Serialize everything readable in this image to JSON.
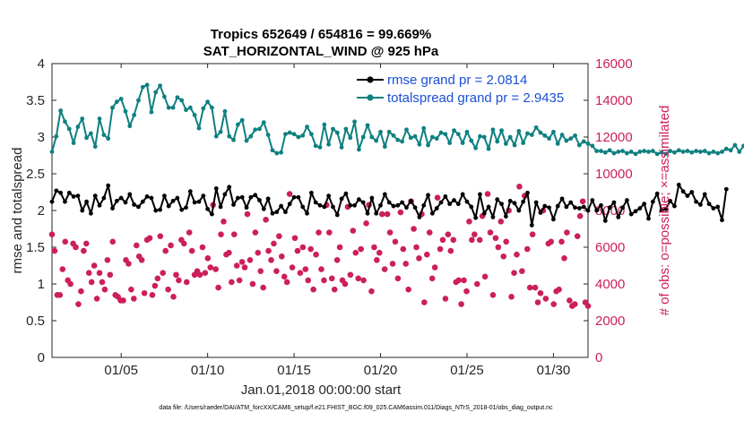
{
  "chart_data": {
    "type": "line",
    "title": "Tropics 652649 / 654816 = 99.669%",
    "subtitle": "SAT_HORIZONTAL_WIND @ 925 hPa",
    "xlabel": "Jan.01,2018 00:00:00 start",
    "ylabel": "rmse and totalspread",
    "ylabel_right": "# of obs: o=possible; ×=assimilated",
    "footnote": "data file: /Users/raeder/DAI/ATM_forcXX/CAM6_setup/f.e21.FHIST_BGC.f09_025.CAM6assim.011/Diags_NTrS_2018-01/obs_diag_output.nc",
    "xlim": [
      1,
      32
    ],
    "ylim": [
      0,
      4
    ],
    "ylim_right": [
      0,
      16000
    ],
    "x_tick_labels": [
      "01/05",
      "01/10",
      "01/15",
      "01/20",
      "01/25",
      "01/30"
    ],
    "x_tick_values": [
      5,
      10,
      15,
      20,
      25,
      30
    ],
    "y_tick_labels": [
      "0",
      "0.5",
      "1",
      "1.5",
      "2",
      "2.5",
      "3",
      "3.5",
      "4"
    ],
    "y_tick_values": [
      0,
      0.5,
      1,
      1.5,
      2,
      2.5,
      3,
      3.5,
      4
    ],
    "y_right_tick_labels": [
      "0",
      "2000",
      "4000",
      "6000",
      "8000",
      "10000",
      "12000",
      "14000",
      "16000"
    ],
    "y_right_tick_values": [
      0,
      2000,
      4000,
      6000,
      8000,
      10000,
      12000,
      14000,
      16000
    ],
    "legend": [
      "rmse grand pr = 2.0814",
      "totalspread grand pr = 2.9435"
    ],
    "x_start": 1.0,
    "x_step": 0.25,
    "series": [
      {
        "name": "rmse grand pr = 2.0814",
        "color": "#000000",
        "axis": "left",
        "values": [
          2.12,
          2.27,
          2.24,
          2.12,
          2.24,
          2.19,
          2.2,
          2.0,
          2.12,
          1.96,
          2.2,
          2.07,
          2.17,
          2.34,
          2.03,
          2.13,
          2.17,
          2.11,
          2.22,
          2.08,
          2.05,
          2.12,
          2.19,
          2.17,
          2.0,
          2.01,
          2.2,
          2.06,
          2.13,
          2.17,
          2.01,
          2.04,
          2.26,
          2.11,
          2.12,
          2.2,
          2.02,
          1.95,
          2.3,
          2.05,
          2.22,
          2.32,
          2.08,
          2.17,
          2.18,
          2.04,
          2.18,
          2.21,
          2.14,
          2.02,
          2.16,
          1.96,
          1.98,
          2.06,
          1.98,
          2.09,
          2.18,
          2.18,
          2.05,
          1.96,
          2.24,
          2.11,
          2.07,
          2.05,
          2.2,
          2.05,
          1.94,
          2.16,
          2.23,
          2.07,
          2.07,
          2.15,
          2.11,
          1.96,
          2.17,
          1.96,
          2.07,
          2.22,
          2.11,
          2.06,
          2.07,
          2.11,
          2.04,
          2.13,
          2.04,
          1.91,
          2.07,
          2.21,
          1.96,
          2.03,
          2.11,
          2.19,
          2.09,
          2.14,
          2.09,
          2.22,
          2.12,
          2.05,
          1.9,
          2.22,
          1.96,
          2.05,
          1.91,
          2.15,
          2.09,
          1.92,
          2.13,
          2.1,
          2.0,
          2.12,
          2.24,
          1.8,
          2.11,
          1.97,
          2.06,
          2.04,
          1.88,
          2.06,
          2.16,
          2.05,
          2.11,
          2.04,
          2.03,
          2.05,
          2.0,
          2.14,
          2.0,
          2.07,
          1.86,
          2.04,
          2.11,
          1.91,
          2.04,
          2.14,
          1.95,
          1.99,
          2.03,
          2.09,
          1.89,
          2.12,
          2.23,
          2.0,
          2.02,
          2.13,
          2.06,
          2.35,
          2.26,
          2.2,
          2.25,
          2.12,
          2.08,
          2.22,
          2.09,
          2.03,
          2.05,
          1.87,
          2.29
        ]
      },
      {
        "name": "totalspread grand pr = 2.9435",
        "color": "#0f8080",
        "axis": "left",
        "values": [
          2.8,
          3.01,
          3.36,
          3.21,
          3.11,
          2.92,
          3.14,
          3.25,
          2.99,
          3.05,
          2.87,
          3.25,
          3.03,
          2.98,
          3.4,
          3.48,
          3.52,
          3.35,
          3.15,
          3.3,
          3.5,
          3.68,
          3.71,
          3.34,
          3.61,
          3.7,
          3.55,
          3.4,
          3.4,
          3.54,
          3.5,
          3.37,
          3.4,
          3.3,
          3.12,
          3.39,
          3.48,
          3.4,
          3.01,
          3.07,
          3.35,
          3.01,
          2.96,
          3.17,
          3.23,
          2.95,
          3.01,
          3.1,
          3.11,
          3.2,
          3.03,
          2.82,
          2.78,
          2.79,
          3.04,
          3.06,
          3.04,
          3.0,
          3.02,
          3.14,
          3.04,
          2.88,
          2.86,
          3.17,
          2.9,
          3.11,
          3.06,
          2.86,
          3.11,
          2.99,
          3.21,
          2.83,
          3.0,
          3.16,
          3.0,
          2.95,
          3.07,
          2.87,
          3.07,
          3.02,
          2.96,
          2.94,
          3.1,
          2.99,
          3.01,
          2.9,
          3.12,
          2.89,
          3.0,
          2.98,
          3.06,
          3.04,
          2.92,
          3.09,
          3.04,
          2.92,
          3.07,
          2.95,
          2.85,
          3.01,
          3.0,
          2.84,
          3.1,
          2.94,
          3.09,
          2.91,
          3.0,
          2.89,
          3.08,
          2.92,
          3.05,
          3.03,
          3.13,
          3.06,
          3.02,
          2.98,
          3.07,
          2.91,
          3.03,
          2.95,
          2.98,
          3.02,
          2.89,
          2.94,
          2.91,
          2.88,
          2.81,
          2.81,
          2.79,
          2.82,
          2.78,
          2.8,
          2.81,
          2.78,
          2.8,
          2.77,
          2.8,
          2.81,
          2.8,
          2.81,
          2.77,
          2.79,
          2.77,
          2.81,
          2.79,
          2.82,
          2.8,
          2.81,
          2.79,
          2.81,
          2.8,
          2.81,
          2.78,
          2.8,
          2.78,
          2.8,
          2.84,
          2.82,
          2.89,
          2.8,
          2.88,
          2.9,
          2.82,
          2.87,
          2.91,
          2.84,
          2.92,
          2.96,
          2.83,
          2.88,
          2.89,
          2.84,
          2.91,
          2.87,
          2.84,
          2.82,
          2.86,
          2.85
        ]
      },
      {
        "name": "# of obs possible",
        "color": "#cc1f5c",
        "axis": "right",
        "marker": "circle",
        "values": [
          6700,
          5800,
          3400,
          3400,
          4800,
          6300,
          4200,
          4000,
          6200,
          6000,
          2900,
          3600,
          5800,
          6200,
          4600,
          4100,
          5000,
          3200,
          4600,
          4100,
          3700,
          5300,
          4500,
          6300,
          3400,
          3300,
          3100,
          3100,
          5300,
          5100,
          3700,
          3200,
          6100,
          5500,
          5300,
          3500,
          6400,
          6500,
          3400,
          3900,
          4300,
          6600,
          4600,
          5800,
          3700,
          6100,
          3300,
          4500,
          4200,
          6400,
          6200,
          4100,
          6800,
          5800,
          4500,
          4700,
          4500,
          6000,
          4600,
          5400,
          4900,
          8300,
          4800,
          3800,
          6700,
          7400,
          5600,
          5700,
          4100,
          6700,
          5000,
          4200,
          5200,
          4900,
          7800,
          5300,
          4000,
          6800,
          5700,
          4700,
          3800,
          7500,
          5800,
          5300,
          6200,
          4700,
          6600,
          5500,
          4400,
          4100,
          8900,
          4900,
          6500,
          5800,
          4600,
          6000,
          4800,
          4200,
          5900,
          3700,
          5600,
          6800,
          4800,
          4200,
          8300,
          6800,
          4300,
          3700,
          5300,
          6000,
          4200,
          4000,
          8200,
          4500,
          6900,
          5700,
          4300,
          5900,
          4200,
          7300,
          8300,
          3600,
          6000,
          5300,
          5700,
          7800,
          4800,
          7800,
          6800,
          5100,
          6300,
          4300,
          7900,
          5900,
          5100,
          3700,
          8500,
          7000,
          6000,
          5400,
          7800,
          3000,
          5600,
          6800,
          4300,
          4900,
          8700,
          5900,
          6400,
          3200,
          6700,
          5800,
          6400,
          4100,
          4200,
          2900,
          4200,
          3600,
          7400,
          6400,
          6700,
          4000,
          6400,
          7700,
          4400,
          8900,
          6800,
          3400,
          6500,
          6000,
          7400,
          5500,
          6300,
          8000,
          3300,
          4600,
          5600,
          9300,
          4700,
          8800,
          5900,
          3800,
          6700,
          3800,
          3000,
          3500,
          8000,
          3200,
          6200,
          6300,
          2900,
          3600,
          3700,
          6300,
          5400,
          6800,
          3100,
          2800,
          2900,
          6600,
          7700,
          8500,
          3000,
          2800
        ]
      }
    ]
  }
}
